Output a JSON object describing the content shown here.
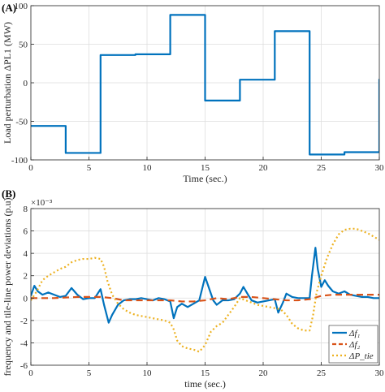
{
  "chart_data": [
    {
      "panel_label": "(A)",
      "type": "line",
      "step": true,
      "xlabel": "Time (sec.)",
      "ylabel": "Load perturbation ΔPL1 (MW)",
      "xlim": [
        0,
        30
      ],
      "ylim": [
        -100,
        100
      ],
      "xticks": [
        "0",
        "5",
        "10",
        "15",
        "20",
        "25",
        "30"
      ],
      "yticks": [
        "-100",
        "-50",
        "0",
        "50",
        "100"
      ],
      "grid": true,
      "series": [
        {
          "color": "#0072BD",
          "x": [
            0,
            3,
            3,
            6,
            6,
            9,
            9,
            12,
            12,
            15,
            15,
            18,
            18,
            21,
            21,
            24,
            24,
            27,
            27,
            30,
            30
          ],
          "y": [
            -56,
            -56,
            -91,
            -91,
            36,
            36,
            37,
            37,
            88,
            88,
            -23,
            -23,
            4,
            4,
            67,
            67,
            -93,
            -93,
            -90,
            -90,
            5
          ]
        }
      ]
    },
    {
      "panel_label": "(B)",
      "type": "line",
      "xlabel": "time (sec.)",
      "ylabel": "frequency and tile-line power deviations (p.u)",
      "exponent_label": "×10⁻³",
      "xlim": [
        0,
        30
      ],
      "ylim": [
        -6,
        8
      ],
      "xticks": [
        "0",
        "5",
        "10",
        "15",
        "20",
        "25",
        "30"
      ],
      "yticks": [
        "-6",
        "-4",
        "-2",
        "0",
        "2",
        "4",
        "6",
        "8"
      ],
      "grid": true,
      "legend_position": "bottom-right",
      "series": [
        {
          "name": "Δf₁",
          "color": "#0072BD",
          "dash": "solid",
          "x": [
            0,
            0.3,
            0.6,
            1,
            1.5,
            2,
            2.5,
            3,
            3.5,
            4,
            4.5,
            5,
            5.5,
            6,
            6.3,
            6.7,
            7,
            7.5,
            8,
            8.5,
            9,
            9.5,
            10,
            10.5,
            11,
            11.5,
            12,
            12.3,
            12.6,
            13,
            13.5,
            14,
            14.5,
            15,
            15.3,
            15.7,
            16,
            16.5,
            17,
            17.5,
            18,
            18.3,
            18.7,
            19,
            19.5,
            20,
            20.5,
            21,
            21.3,
            21.7,
            22,
            22.5,
            23,
            23.5,
            24,
            24.2,
            24.5,
            24.7,
            25,
            25.3,
            25.6,
            26,
            26.5,
            27,
            27.5,
            28,
            28.5,
            29,
            29.5,
            30
          ],
          "y": [
            0.2,
            1.1,
            0.6,
            0.3,
            0.5,
            0.3,
            0.1,
            0.2,
            0.9,
            0.3,
            -0.1,
            0.0,
            0.0,
            0.8,
            -0.6,
            -2.2,
            -1.5,
            -0.6,
            -0.2,
            -0.1,
            -0.1,
            0.0,
            -0.1,
            -0.2,
            0.0,
            -0.1,
            -0.3,
            -1.8,
            -0.8,
            -0.5,
            -0.8,
            -0.5,
            -0.2,
            1.9,
            1.0,
            -0.2,
            -0.6,
            -0.2,
            -0.2,
            -0.1,
            0.4,
            1.0,
            0.3,
            -0.2,
            -0.4,
            -0.3,
            -0.2,
            -0.1,
            -1.3,
            -0.4,
            0.4,
            0.1,
            0.0,
            0.0,
            0.0,
            2.0,
            4.5,
            2.6,
            1.0,
            1.6,
            1.1,
            0.6,
            0.4,
            0.6,
            0.3,
            0.2,
            0.1,
            0.1,
            0.0,
            0.0
          ]
        },
        {
          "name": "Δf₂",
          "color": "#D95319",
          "dash": "dashed",
          "x": [
            0,
            2,
            4,
            6,
            7,
            8,
            10,
            12,
            13,
            14,
            15,
            16,
            17,
            18,
            19,
            20,
            21,
            22,
            23,
            24,
            25,
            26,
            27,
            28,
            30
          ],
          "y": [
            0.0,
            0.0,
            0.1,
            0.1,
            0.0,
            -0.2,
            -0.2,
            -0.2,
            -0.3,
            -0.3,
            -0.2,
            0.0,
            -0.1,
            0.1,
            0.1,
            0.0,
            -0.1,
            -0.2,
            -0.2,
            -0.1,
            0.2,
            0.3,
            0.3,
            0.3,
            0.3
          ]
        },
        {
          "name": "ΔP_tie",
          "color": "#EDB120",
          "dash": "dotted",
          "x": [
            0,
            0.5,
            1,
            1.5,
            2,
            2.5,
            3,
            3.5,
            4,
            4.5,
            5,
            5.5,
            6,
            6.3,
            6.6,
            7,
            7.5,
            8,
            8.5,
            9,
            9.5,
            10,
            10.5,
            11,
            11.5,
            12,
            12.3,
            12.6,
            13,
            13.5,
            14,
            14.5,
            15,
            15.5,
            16,
            16.5,
            17,
            17.5,
            18,
            18.5,
            19,
            19.5,
            20,
            20.5,
            21,
            21.5,
            22,
            22.5,
            23,
            23.5,
            24,
            24.3,
            24.6,
            25,
            25.5,
            26,
            26.5,
            27,
            27.5,
            28,
            28.5,
            29,
            29.5,
            30
          ],
          "y": [
            -0.2,
            0.6,
            1.6,
            2.0,
            2.3,
            2.6,
            2.8,
            3.2,
            3.4,
            3.5,
            3.5,
            3.6,
            3.5,
            2.8,
            1.5,
            0.3,
            -0.5,
            -1.0,
            -1.3,
            -1.5,
            -1.6,
            -1.7,
            -1.8,
            -1.9,
            -2.0,
            -2.2,
            -2.8,
            -3.8,
            -4.3,
            -4.5,
            -4.6,
            -4.8,
            -4.2,
            -3.0,
            -2.5,
            -2.2,
            -1.5,
            -0.8,
            0.0,
            -0.2,
            -0.4,
            -0.6,
            -0.7,
            -0.8,
            -0.9,
            -1.0,
            -1.5,
            -2.3,
            -2.7,
            -2.9,
            -2.9,
            -1.5,
            0.5,
            2.0,
            3.6,
            4.8,
            5.7,
            6.1,
            6.2,
            6.2,
            6.0,
            5.8,
            5.5,
            5.2
          ]
        }
      ]
    }
  ]
}
